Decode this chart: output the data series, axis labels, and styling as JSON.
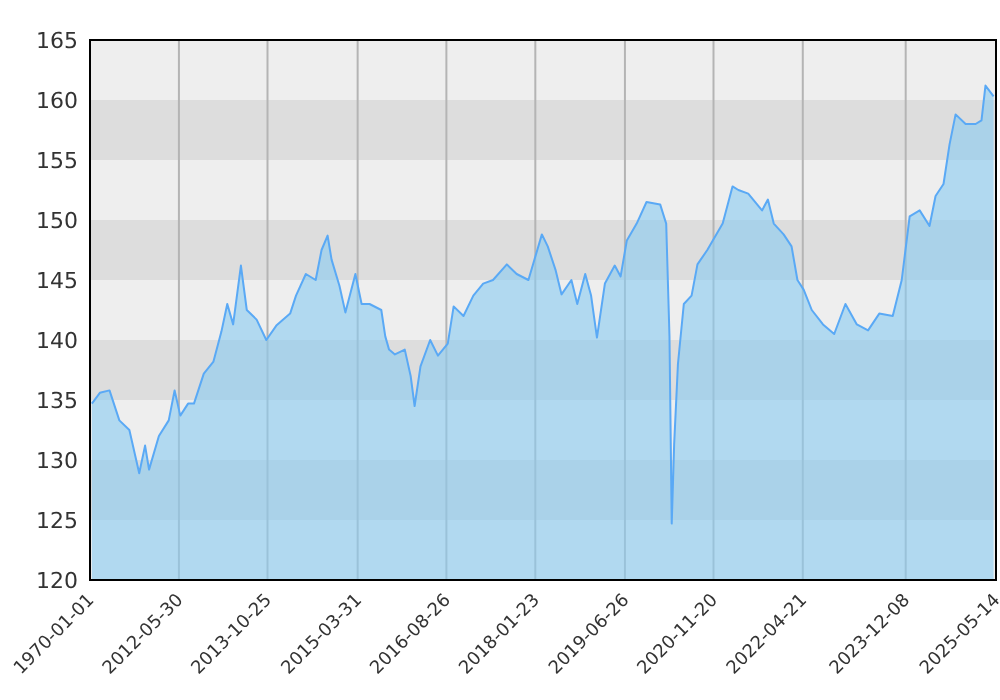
{
  "chart_data": {
    "type": "area",
    "x": [
      "2011-01-12",
      "2011-02-27",
      "2011-04-24",
      "2011-06-20",
      "2011-08-17",
      "2011-10-13",
      "2011-11-16",
      "2011-12-09",
      "2012-02-04",
      "2012-04-01",
      "2012-05-05",
      "2012-06-07",
      "2012-07-22",
      "2012-08-25",
      "2012-10-21",
      "2012-12-16",
      "2013-01-31",
      "2013-03-06",
      "2013-04-09",
      "2013-05-24",
      "2013-06-27",
      "2013-08-23",
      "2013-10-18",
      "2013-12-15",
      "2014-03-05",
      "2014-04-08",
      "2014-06-04",
      "2014-07-31",
      "2014-09-03",
      "2014-10-08",
      "2014-10-31",
      "2014-12-16",
      "2015-01-19",
      "2015-03-18",
      "2015-04-23",
      "2015-06-08",
      "2015-08-15",
      "2015-09-07",
      "2015-09-29",
      "2015-11-02",
      "2015-12-29",
      "2016-02-01",
      "2016-02-24",
      "2016-03-29",
      "2016-05-24",
      "2016-07-08",
      "2016-09-03",
      "2016-10-07",
      "2016-12-03",
      "2017-01-29",
      "2017-03-27",
      "2017-05-23",
      "2017-08-11",
      "2017-10-07",
      "2017-12-14",
      "2018-03-02",
      "2018-04-05",
      "2018-05-21",
      "2018-06-24",
      "2018-08-20",
      "2018-09-23",
      "2018-11-08",
      "2018-12-12",
      "2019-01-15",
      "2019-03-02",
      "2019-04-28",
      "2019-06-01",
      "2019-07-07",
      "2019-09-02",
      "2019-10-29",
      "2020-01-16",
      "2020-02-20",
      "2020-03-10",
      "2020-03-23",
      "2020-04-06",
      "2020-04-28",
      "2020-06-01",
      "2020-07-16",
      "2020-08-19",
      "2020-10-15",
      "2021-01-12",
      "2021-03-10",
      "2021-04-13",
      "2021-06-09",
      "2021-08-28",
      "2021-10-01",
      "2021-11-04",
      "2021-12-31",
      "2022-02-15",
      "2022-03-21",
      "2022-04-26",
      "2022-06-12",
      "2022-08-16",
      "2022-10-20",
      "2022-12-24",
      "2023-02-28",
      "2023-05-04",
      "2023-07-08",
      "2023-09-24",
      "2023-11-15",
      "2023-12-31",
      "2024-02-27",
      "2024-04-24",
      "2024-05-29",
      "2024-07-14",
      "2024-08-18",
      "2024-09-22",
      "2024-11-19",
      "2025-01-16",
      "2025-02-19",
      "2025-03-14",
      "2025-04-30"
    ],
    "series": [
      {
        "color": "#5aa9f5",
        "values": [
          134.7,
          135.6,
          135.8,
          133.3,
          132.5,
          128.9,
          131.2,
          129.2,
          132,
          133.3,
          135.8,
          133.7,
          134.7,
          134.7,
          137.2,
          138.2,
          140.7,
          143,
          141.3,
          146.2,
          142.5,
          141.7,
          140,
          141.2,
          142.2,
          143.7,
          145.5,
          145,
          147.5,
          148.7,
          146.7,
          144.5,
          142.3,
          145.5,
          143,
          143,
          142.5,
          140.3,
          139.2,
          138.8,
          139.2,
          137,
          134.5,
          137.8,
          140,
          138.7,
          139.7,
          142.8,
          142,
          143.7,
          144.7,
          145,
          146.3,
          145.5,
          145,
          148.8,
          147.8,
          145.8,
          143.8,
          145,
          143,
          145.5,
          143.7,
          140.2,
          144.7,
          146.2,
          145.3,
          148.3,
          149.7,
          151.5,
          151.3,
          149.7,
          140.3,
          124.7,
          131.3,
          138,
          143,
          143.7,
          146.3,
          147.5,
          149.7,
          152.8,
          152.5,
          152.2,
          150.8,
          151.7,
          149.7,
          148.8,
          147.8,
          145,
          144.2,
          142.5,
          141.3,
          140.5,
          143,
          141.3,
          140.8,
          142.2,
          142,
          145,
          150.3,
          150.8,
          149.5,
          152,
          153,
          156.3,
          158.8,
          158,
          158,
          158.3,
          161.2,
          160.3
        ]
      }
    ],
    "xlim": [
      "2011-01-01",
      "2025-05-14"
    ],
    "annotations": [
      "1970-01-01"
    ],
    "xticks": [
      {
        "value": "2011-01-01",
        "label": null
      },
      {
        "value": "2012-05-30",
        "label": "2012-05-30"
      },
      {
        "value": "2013-10-25",
        "label": "2013-10-25"
      },
      {
        "value": "2015-03-31",
        "label": "2015-03-31"
      },
      {
        "value": "2016-08-26",
        "label": "2016-08-26"
      },
      {
        "value": "2018-01-23",
        "label": "2018-01-23"
      },
      {
        "value": "2019-06-26",
        "label": "2019-06-26"
      },
      {
        "value": "2020-11-20",
        "label": "2020-11-20"
      },
      {
        "value": "2022-04-21",
        "label": "2022-04-21"
      },
      {
        "value": "2023-12-08",
        "label": "2023-12-08"
      },
      {
        "value": "2025-05-14",
        "label": "2025-05-14"
      }
    ],
    "ylim": [
      120,
      165
    ],
    "yticks": [
      120,
      125,
      130,
      135,
      140,
      145,
      150,
      155,
      160,
      165
    ],
    "grid": true
  }
}
